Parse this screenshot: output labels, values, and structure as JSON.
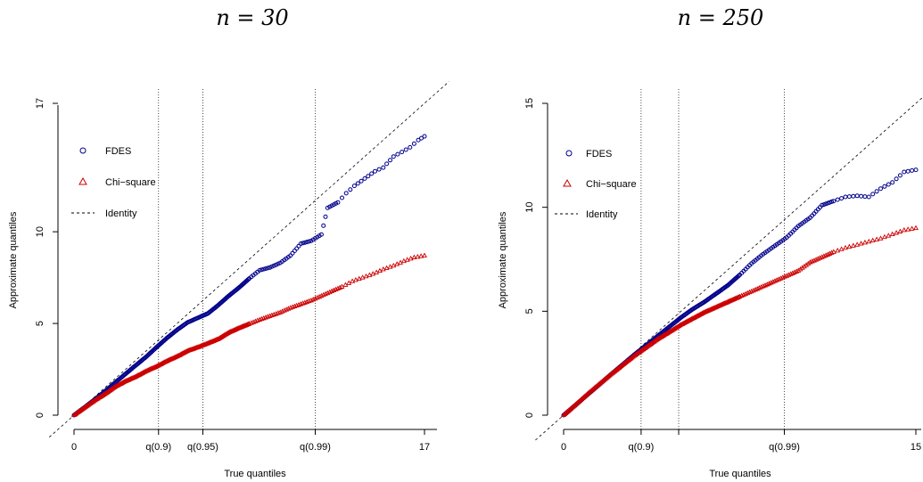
{
  "chart_data": [
    {
      "type": "scatter",
      "title": "n = 30",
      "xlabel": "True quantiles",
      "ylabel": "Approximate quantiles",
      "xlim": [
        0,
        17
      ],
      "ylim": [
        0,
        17
      ],
      "xticks": [
        {
          "value": 0,
          "label": "0"
        },
        {
          "value": 4.1,
          "label": "q(0.9)"
        },
        {
          "value": 6.25,
          "label": "q(0.95)"
        },
        {
          "value": 11.7,
          "label": "q(0.99)"
        },
        {
          "value": 17,
          "label": "17"
        }
      ],
      "yticks": [
        {
          "value": 0,
          "label": "0"
        },
        {
          "value": 5,
          "label": "5"
        },
        {
          "value": 10,
          "label": "10"
        },
        {
          "value": 17,
          "label": "17"
        }
      ],
      "vlines": [
        4.1,
        6.25,
        11.7
      ],
      "legend": {
        "position": "top-left",
        "entries": [
          "FDES",
          "Chi−square",
          "Identity"
        ]
      },
      "series": [
        {
          "name": "FDES",
          "marker": "circle",
          "color": "#00008B",
          "points": [
            [
              0,
              0
            ],
            [
              0.5,
              0.42
            ],
            [
              1,
              0.85
            ],
            [
              1.5,
              1.3
            ],
            [
              2,
              1.78
            ],
            [
              2.5,
              2.25
            ],
            [
              3,
              2.72
            ],
            [
              3.5,
              3.18
            ],
            [
              4,
              3.7
            ],
            [
              4.5,
              4.2
            ],
            [
              5,
              4.65
            ],
            [
              5.5,
              5.05
            ],
            [
              6,
              5.3
            ],
            [
              6.5,
              5.55
            ],
            [
              7,
              6.0
            ],
            [
              7.5,
              6.5
            ],
            [
              8,
              6.95
            ],
            [
              8.5,
              7.45
            ],
            [
              9,
              7.9
            ],
            [
              9.5,
              8.05
            ],
            [
              10,
              8.3
            ],
            [
              10.5,
              8.7
            ],
            [
              11,
              9.35
            ],
            [
              11.5,
              9.5
            ],
            [
              12,
              9.85
            ],
            [
              12.3,
              11.3
            ],
            [
              12.8,
              11.6
            ],
            [
              13.2,
              12.1
            ],
            [
              13.6,
              12.5
            ],
            [
              14.1,
              12.9
            ],
            [
              14.6,
              13.3
            ],
            [
              15,
              13.5
            ],
            [
              15.5,
              14.1
            ],
            [
              16.3,
              14.6
            ],
            [
              16.7,
              15.0
            ],
            [
              17,
              15.2
            ]
          ]
        },
        {
          "name": "Chi−square",
          "marker": "triangle",
          "color": "#CC0000",
          "points": [
            [
              0,
              0
            ],
            [
              0.5,
              0.4
            ],
            [
              1,
              0.8
            ],
            [
              1.5,
              1.15
            ],
            [
              2,
              1.55
            ],
            [
              2.5,
              1.85
            ],
            [
              3,
              2.1
            ],
            [
              3.5,
              2.4
            ],
            [
              4,
              2.65
            ],
            [
              4.5,
              2.95
            ],
            [
              5,
              3.2
            ],
            [
              5.5,
              3.5
            ],
            [
              6,
              3.7
            ],
            [
              6.5,
              3.92
            ],
            [
              7,
              4.15
            ],
            [
              7.5,
              4.5
            ],
            [
              8,
              4.75
            ],
            [
              8.5,
              4.98
            ],
            [
              9,
              5.2
            ],
            [
              9.5,
              5.4
            ],
            [
              10,
              5.6
            ],
            [
              10.5,
              5.85
            ],
            [
              11,
              6.05
            ],
            [
              11.5,
              6.25
            ],
            [
              12,
              6.5
            ],
            [
              12.5,
              6.75
            ],
            [
              13,
              7.0
            ],
            [
              13.5,
              7.3
            ],
            [
              14,
              7.5
            ],
            [
              14.5,
              7.7
            ],
            [
              15,
              7.95
            ],
            [
              15.5,
              8.15
            ],
            [
              16,
              8.4
            ],
            [
              16.5,
              8.6
            ],
            [
              17,
              8.7
            ]
          ]
        }
      ]
    },
    {
      "type": "scatter",
      "title": "n = 250",
      "xlabel": "True quantiles",
      "ylabel": "Approximate quantiles",
      "xlim": [
        0,
        15
      ],
      "ylim": [
        0,
        15
      ],
      "xticks": [
        {
          "value": 0,
          "label": "0"
        },
        {
          "value": 3.3,
          "label": "q(0.9)"
        },
        {
          "value": 4.9,
          "label": ""
        },
        {
          "value": 9.4,
          "label": "q(0.99)"
        },
        {
          "value": 15,
          "label": "15"
        }
      ],
      "yticks": [
        {
          "value": 0,
          "label": "0"
        },
        {
          "value": 5,
          "label": "5"
        },
        {
          "value": 10,
          "label": "10"
        },
        {
          "value": 15,
          "label": "15"
        }
      ],
      "vlines": [
        3.3,
        4.9,
        9.4
      ],
      "legend": {
        "position": "top-left",
        "entries": [
          "FDES",
          "Chi−square",
          "Identity"
        ]
      },
      "series": [
        {
          "name": "FDES",
          "marker": "circle",
          "color": "#00008B",
          "points": [
            [
              0,
              0
            ],
            [
              0.5,
              0.48
            ],
            [
              1,
              0.97
            ],
            [
              1.5,
              1.45
            ],
            [
              2,
              1.95
            ],
            [
              2.5,
              2.42
            ],
            [
              3,
              2.9
            ],
            [
              3.5,
              3.35
            ],
            [
              4,
              3.8
            ],
            [
              4.5,
              4.25
            ],
            [
              5,
              4.7
            ],
            [
              5.5,
              5.1
            ],
            [
              6,
              5.45
            ],
            [
              6.5,
              5.85
            ],
            [
              7,
              6.25
            ],
            [
              7.5,
              6.75
            ],
            [
              8,
              7.3
            ],
            [
              8.5,
              7.75
            ],
            [
              9,
              8.15
            ],
            [
              9.5,
              8.55
            ],
            [
              10,
              9.1
            ],
            [
              10.5,
              9.5
            ],
            [
              11,
              10.1
            ],
            [
              11.5,
              10.3
            ],
            [
              12,
              10.5
            ],
            [
              12.5,
              10.55
            ],
            [
              13,
              10.5
            ],
            [
              13.5,
              10.9
            ],
            [
              14,
              11.2
            ],
            [
              14.5,
              11.7
            ],
            [
              15,
              11.8
            ]
          ]
        },
        {
          "name": "Chi−square",
          "marker": "triangle",
          "color": "#CC0000",
          "points": [
            [
              0,
              0
            ],
            [
              0.5,
              0.5
            ],
            [
              1,
              1.0
            ],
            [
              1.5,
              1.48
            ],
            [
              2,
              1.95
            ],
            [
              2.5,
              2.4
            ],
            [
              3,
              2.85
            ],
            [
              3.5,
              3.25
            ],
            [
              4,
              3.65
            ],
            [
              4.5,
              4.0
            ],
            [
              5,
              4.35
            ],
            [
              5.5,
              4.65
            ],
            [
              6,
              4.95
            ],
            [
              6.5,
              5.2
            ],
            [
              7,
              5.45
            ],
            [
              7.5,
              5.7
            ],
            [
              8,
              5.95
            ],
            [
              8.5,
              6.2
            ],
            [
              9,
              6.45
            ],
            [
              9.5,
              6.7
            ],
            [
              10,
              6.95
            ],
            [
              10.5,
              7.35
            ],
            [
              11,
              7.6
            ],
            [
              11.5,
              7.85
            ],
            [
              12,
              8.05
            ],
            [
              12.5,
              8.2
            ],
            [
              13,
              8.35
            ],
            [
              13.5,
              8.5
            ],
            [
              14,
              8.7
            ],
            [
              14.5,
              8.9
            ],
            [
              15,
              9.0
            ]
          ]
        }
      ]
    }
  ]
}
